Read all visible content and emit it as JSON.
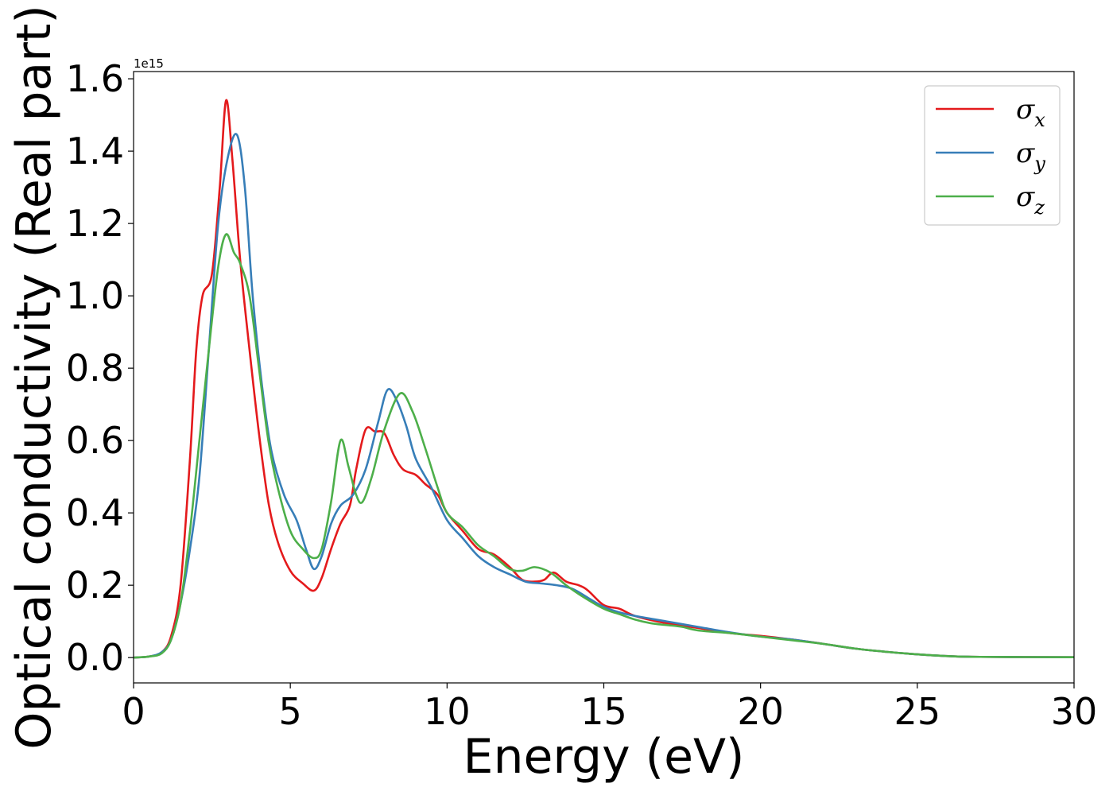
{
  "chart_data": {
    "type": "line",
    "xlabel": "Energy (eV)",
    "ylabel": "Optical conductivity (Real part)",
    "offset_text": "1e15",
    "y_multiplier": 1000000000000000.0,
    "xlim": [
      0,
      30
    ],
    "ylim": [
      -0.07,
      1.62
    ],
    "xticks": [
      0,
      5,
      10,
      15,
      20,
      25,
      30
    ],
    "xtick_labels": [
      "0",
      "5",
      "10",
      "15",
      "20",
      "25",
      "30"
    ],
    "yticks": [
      0.0,
      0.2,
      0.4,
      0.6,
      0.8,
      1.0,
      1.2,
      1.4,
      1.6
    ],
    "ytick_labels": [
      "0.0",
      "0.2",
      "0.4",
      "0.6",
      "0.8",
      "1.0",
      "1.2",
      "1.4",
      "1.6"
    ],
    "grid": false,
    "legend_position": "top-right",
    "series": [
      {
        "name": "σx",
        "base": "σ",
        "sub": "x",
        "color": "#e41a1c",
        "points": [
          [
            0,
            0
          ],
          [
            0.5,
            0.003
          ],
          [
            0.9,
            0.015
          ],
          [
            1.2,
            0.06
          ],
          [
            1.5,
            0.2
          ],
          [
            1.8,
            0.55
          ],
          [
            2.0,
            0.85
          ],
          [
            2.2,
            1.0
          ],
          [
            2.5,
            1.06
          ],
          [
            2.75,
            1.3
          ],
          [
            2.95,
            1.54
          ],
          [
            3.15,
            1.38
          ],
          [
            3.4,
            1.1
          ],
          [
            3.7,
            0.85
          ],
          [
            4.0,
            0.62
          ],
          [
            4.3,
            0.43
          ],
          [
            4.6,
            0.32
          ],
          [
            5.0,
            0.24
          ],
          [
            5.4,
            0.205
          ],
          [
            5.75,
            0.185
          ],
          [
            6.0,
            0.22
          ],
          [
            6.3,
            0.3
          ],
          [
            6.6,
            0.37
          ],
          [
            6.9,
            0.42
          ],
          [
            7.1,
            0.52
          ],
          [
            7.4,
            0.63
          ],
          [
            7.7,
            0.625
          ],
          [
            8.0,
            0.62
          ],
          [
            8.3,
            0.56
          ],
          [
            8.6,
            0.52
          ],
          [
            9.0,
            0.505
          ],
          [
            9.3,
            0.48
          ],
          [
            9.7,
            0.45
          ],
          [
            10.0,
            0.4
          ],
          [
            10.5,
            0.35
          ],
          [
            11.0,
            0.3
          ],
          [
            11.5,
            0.285
          ],
          [
            12.0,
            0.25
          ],
          [
            12.4,
            0.215
          ],
          [
            12.8,
            0.21
          ],
          [
            13.1,
            0.215
          ],
          [
            13.4,
            0.235
          ],
          [
            13.8,
            0.21
          ],
          [
            14.2,
            0.2
          ],
          [
            14.5,
            0.185
          ],
          [
            15.0,
            0.145
          ],
          [
            15.5,
            0.135
          ],
          [
            16.0,
            0.115
          ],
          [
            17.0,
            0.095
          ],
          [
            18.0,
            0.082
          ],
          [
            19.0,
            0.068
          ],
          [
            20.0,
            0.06
          ],
          [
            21.0,
            0.05
          ],
          [
            22.0,
            0.038
          ],
          [
            23.0,
            0.025
          ],
          [
            24.0,
            0.016
          ],
          [
            25.0,
            0.009
          ],
          [
            26.0,
            0.004
          ],
          [
            27.0,
            0.002
          ],
          [
            30.0,
            0.001
          ]
        ]
      },
      {
        "name": "σy",
        "base": "σ",
        "sub": "y",
        "color": "#377eb8",
        "points": [
          [
            0,
            0
          ],
          [
            0.5,
            0.003
          ],
          [
            0.9,
            0.015
          ],
          [
            1.2,
            0.05
          ],
          [
            1.5,
            0.15
          ],
          [
            1.8,
            0.3
          ],
          [
            2.1,
            0.5
          ],
          [
            2.4,
            0.85
          ],
          [
            2.7,
            1.2
          ],
          [
            3.0,
            1.38
          ],
          [
            3.3,
            1.445
          ],
          [
            3.55,
            1.3
          ],
          [
            3.8,
            1.0
          ],
          [
            4.1,
            0.75
          ],
          [
            4.4,
            0.57
          ],
          [
            4.8,
            0.45
          ],
          [
            5.2,
            0.38
          ],
          [
            5.5,
            0.3
          ],
          [
            5.75,
            0.245
          ],
          [
            6.0,
            0.28
          ],
          [
            6.3,
            0.37
          ],
          [
            6.6,
            0.42
          ],
          [
            7.0,
            0.45
          ],
          [
            7.4,
            0.52
          ],
          [
            7.8,
            0.65
          ],
          [
            8.1,
            0.74
          ],
          [
            8.4,
            0.71
          ],
          [
            8.7,
            0.64
          ],
          [
            9.0,
            0.55
          ],
          [
            9.5,
            0.47
          ],
          [
            10.0,
            0.38
          ],
          [
            10.5,
            0.33
          ],
          [
            11.0,
            0.28
          ],
          [
            11.5,
            0.25
          ],
          [
            12.0,
            0.23
          ],
          [
            12.5,
            0.21
          ],
          [
            13.0,
            0.205
          ],
          [
            13.5,
            0.2
          ],
          [
            14.0,
            0.19
          ],
          [
            14.5,
            0.165
          ],
          [
            15.0,
            0.14
          ],
          [
            15.5,
            0.125
          ],
          [
            16.0,
            0.115
          ],
          [
            17.0,
            0.1
          ],
          [
            18.0,
            0.085
          ],
          [
            19.0,
            0.07
          ],
          [
            20.0,
            0.058
          ],
          [
            21.0,
            0.05
          ],
          [
            22.0,
            0.038
          ],
          [
            23.0,
            0.025
          ],
          [
            24.0,
            0.016
          ],
          [
            25.0,
            0.009
          ],
          [
            26.0,
            0.004
          ],
          [
            27.0,
            0.002
          ],
          [
            30.0,
            0.001
          ]
        ]
      },
      {
        "name": "σz",
        "base": "σ",
        "sub": "z",
        "color": "#4daf4a",
        "points": [
          [
            0,
            0
          ],
          [
            0.5,
            0.003
          ],
          [
            0.9,
            0.012
          ],
          [
            1.2,
            0.05
          ],
          [
            1.5,
            0.15
          ],
          [
            1.8,
            0.35
          ],
          [
            2.1,
            0.6
          ],
          [
            2.4,
            0.85
          ],
          [
            2.7,
            1.08
          ],
          [
            2.95,
            1.17
          ],
          [
            3.2,
            1.12
          ],
          [
            3.4,
            1.09
          ],
          [
            3.7,
            1.0
          ],
          [
            4.0,
            0.8
          ],
          [
            4.3,
            0.6
          ],
          [
            4.6,
            0.47
          ],
          [
            5.0,
            0.35
          ],
          [
            5.4,
            0.3
          ],
          [
            5.75,
            0.275
          ],
          [
            6.0,
            0.3
          ],
          [
            6.3,
            0.43
          ],
          [
            6.6,
            0.6
          ],
          [
            6.85,
            0.53
          ],
          [
            7.1,
            0.45
          ],
          [
            7.3,
            0.43
          ],
          [
            7.6,
            0.5
          ],
          [
            8.0,
            0.63
          ],
          [
            8.5,
            0.73
          ],
          [
            8.9,
            0.68
          ],
          [
            9.3,
            0.58
          ],
          [
            9.7,
            0.47
          ],
          [
            10.0,
            0.4
          ],
          [
            10.5,
            0.36
          ],
          [
            11.0,
            0.31
          ],
          [
            11.5,
            0.28
          ],
          [
            12.0,
            0.245
          ],
          [
            12.4,
            0.24
          ],
          [
            12.8,
            0.25
          ],
          [
            13.3,
            0.235
          ],
          [
            13.8,
            0.2
          ],
          [
            14.3,
            0.17
          ],
          [
            15.0,
            0.135
          ],
          [
            15.5,
            0.12
          ],
          [
            16.0,
            0.105
          ],
          [
            16.5,
            0.095
          ],
          [
            17.0,
            0.09
          ],
          [
            17.5,
            0.085
          ],
          [
            18.0,
            0.075
          ],
          [
            19.0,
            0.068
          ],
          [
            20.0,
            0.058
          ],
          [
            21.0,
            0.048
          ],
          [
            22.0,
            0.038
          ],
          [
            23.0,
            0.025
          ],
          [
            24.0,
            0.016
          ],
          [
            25.0,
            0.009
          ],
          [
            26.0,
            0.004
          ],
          [
            27.0,
            0.002
          ],
          [
            30.0,
            0.001
          ]
        ]
      }
    ]
  }
}
